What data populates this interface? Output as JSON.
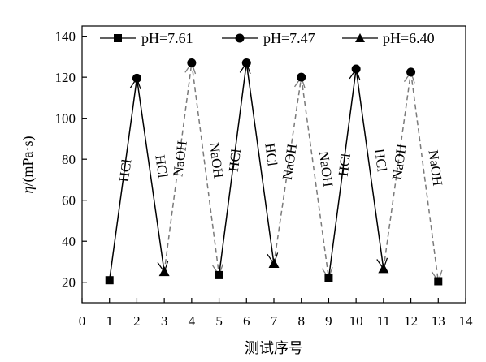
{
  "chart_data": {
    "type": "line",
    "xlabel": "测试序号",
    "ylabel_symbol": "η",
    "ylabel_unit": "/(mPa·s)",
    "xlim": [
      0,
      14
    ],
    "ylim": [
      10,
      145
    ],
    "xticks": [
      "0",
      "1",
      "2",
      "3",
      "4",
      "5",
      "6",
      "7",
      "8",
      "9",
      "10",
      "11",
      "12",
      "13",
      "14"
    ],
    "yticks": [
      "20",
      "40",
      "60",
      "80",
      "100",
      "120",
      "140"
    ],
    "grid": false,
    "legend_position": "top",
    "series": [
      {
        "name": "pH=7.61",
        "marker": "square",
        "x": [
          1,
          5,
          9,
          13
        ],
        "y": [
          21,
          23.5,
          22,
          20.5
        ]
      },
      {
        "name": "pH=7.47",
        "marker": "circle",
        "x": [
          2,
          4,
          6,
          8,
          10,
          12
        ],
        "y": [
          119.5,
          127,
          127,
          120,
          124,
          122.5
        ]
      },
      {
        "name": "pH=6.40",
        "marker": "triangle",
        "x": [
          3,
          7,
          11
        ],
        "y": [
          25,
          29,
          26.5
        ]
      }
    ],
    "segments": [
      {
        "from": 1,
        "to": 2,
        "style": "solid",
        "label": "HCl"
      },
      {
        "from": 2,
        "to": 3,
        "style": "solid",
        "label": "HCl"
      },
      {
        "from": 3,
        "to": 4,
        "style": "dashed",
        "label": "NaOH"
      },
      {
        "from": 4,
        "to": 5,
        "style": "dashed",
        "label": "NaOH"
      },
      {
        "from": 5,
        "to": 6,
        "style": "solid",
        "label": "HCl"
      },
      {
        "from": 6,
        "to": 7,
        "style": "solid",
        "label": "HCl"
      },
      {
        "from": 7,
        "to": 8,
        "style": "dashed",
        "label": "NaOH"
      },
      {
        "from": 8,
        "to": 9,
        "style": "dashed",
        "label": "NaOH"
      },
      {
        "from": 9,
        "to": 10,
        "style": "solid",
        "label": "HCl"
      },
      {
        "from": 10,
        "to": 11,
        "style": "solid",
        "label": "HCl"
      },
      {
        "from": 11,
        "to": 12,
        "style": "dashed",
        "label": "NaOH"
      },
      {
        "from": 12,
        "to": 13,
        "style": "dashed",
        "label": "NaOH"
      }
    ]
  }
}
